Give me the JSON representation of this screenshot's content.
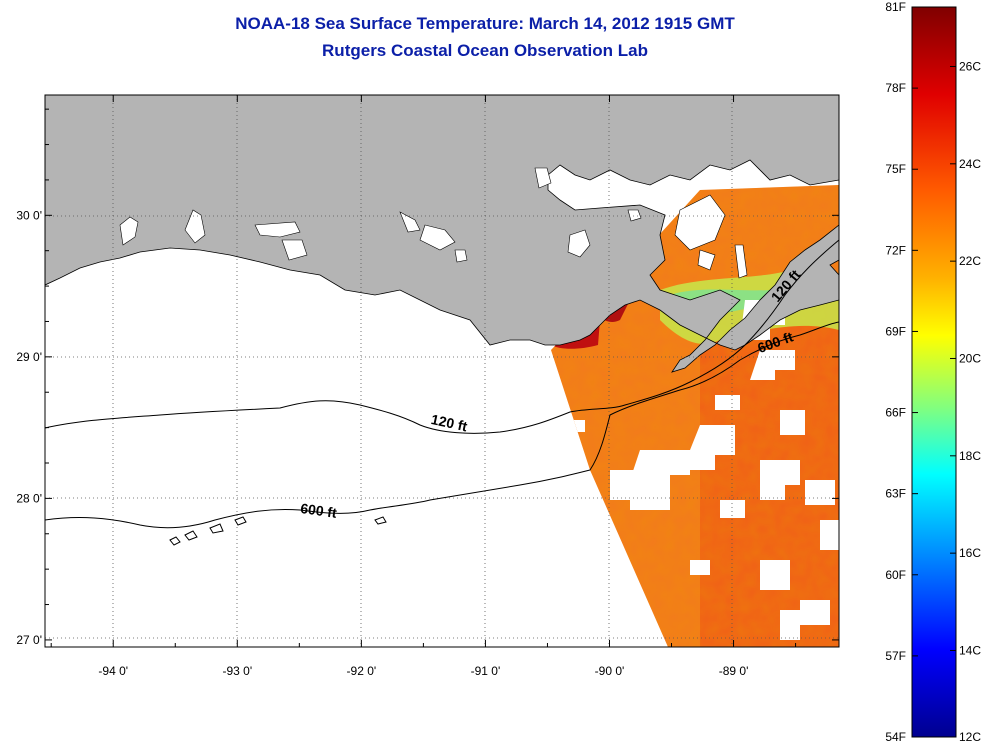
{
  "title": "NOAA-18 Sea Surface Temperature:  March 14, 2012 1915 GMT",
  "subtitle": "Rutgers Coastal Ocean Observation Lab",
  "map": {
    "lon_range": [
      -94.55,
      -88.15
    ],
    "lat_range": [
      26.95,
      30.85
    ],
    "lon_ticks": [
      {
        "value": -94,
        "label": "-94 0'"
      },
      {
        "value": -93,
        "label": "-93 0'"
      },
      {
        "value": -92,
        "label": "-92 0'"
      },
      {
        "value": -91,
        "label": "-91 0'"
      },
      {
        "value": -90,
        "label": "-90 0'"
      },
      {
        "value": -89,
        "label": "-89 0'"
      }
    ],
    "lat_ticks": [
      {
        "value": 30,
        "label": "30 0'"
      },
      {
        "value": 29,
        "label": "29 0'"
      },
      {
        "value": 28,
        "label": "28 0'"
      },
      {
        "value": 27,
        "label": "27 0'"
      }
    ],
    "contour_labels": [
      {
        "text": "120 ft",
        "lon": -91.3,
        "lat": 28.5,
        "angle": 12
      },
      {
        "text": "600 ft",
        "lon": -92.35,
        "lat": 27.88,
        "angle": 8
      },
      {
        "text": "120 ft",
        "lon": -88.55,
        "lat": 29.48,
        "angle": -50
      },
      {
        "text": "600 ft",
        "lon": -88.65,
        "lat": 29.07,
        "angle": -20
      }
    ],
    "colors": {
      "land": "#b4b4b4",
      "water": "#ffffff",
      "grid": "#000000"
    }
  },
  "colorbar": {
    "fahrenheit": [
      "81F",
      "78F",
      "75F",
      "72F",
      "69F",
      "66F",
      "63F",
      "60F",
      "57F",
      "54F"
    ],
    "celsius": [
      "26C",
      "24C",
      "22C",
      "20C",
      "18C",
      "16C",
      "14C",
      "12C"
    ],
    "colors": [
      "#800000",
      "#ff0000",
      "#ff8000",
      "#ffff00",
      "#80ff80",
      "#00ffff",
      "#0080ff",
      "#0000ff",
      "#00008f"
    ]
  }
}
